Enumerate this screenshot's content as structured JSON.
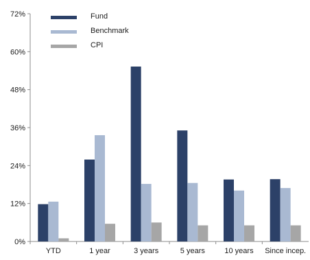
{
  "chart_data": {
    "type": "bar",
    "categories": [
      "YTD",
      "1 year",
      "3 years",
      "5 years",
      "10 years",
      "Since incep."
    ],
    "series": [
      {
        "name": "Fund",
        "color": "#2c4168",
        "values": [
          11.8,
          25.9,
          55.3,
          35.1,
          19.6,
          19.7
        ]
      },
      {
        "name": "Benchmark",
        "color": "#a9b9d2",
        "values": [
          12.6,
          33.6,
          18.2,
          18.5,
          16.1,
          16.9
        ]
      },
      {
        "name": "CPI",
        "color": "#a6a6a6",
        "values": [
          1.0,
          5.6,
          6.0,
          5.1,
          5.1,
          5.1
        ]
      }
    ],
    "yticks": [
      "0%",
      "12%",
      "24%",
      "36%",
      "48%",
      "60%",
      "72%"
    ],
    "ylim": [
      0,
      72
    ],
    "grid": false,
    "legend_position": "top-left"
  }
}
